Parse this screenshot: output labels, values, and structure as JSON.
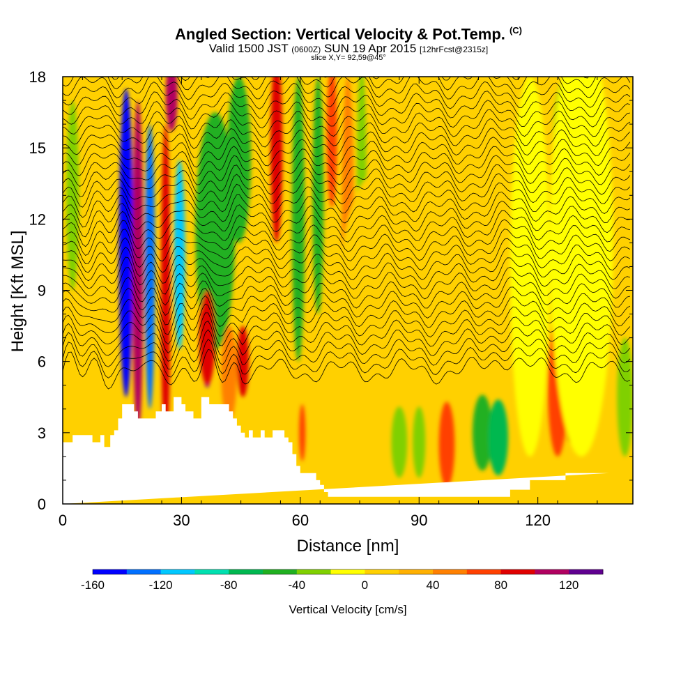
{
  "title": "Angled Section: Vertical Velocity & Pot.Temp.",
  "title_unit": "(C)",
  "subtitle": {
    "valid": "Valid 1500 JST",
    "utc": "(0600Z)",
    "date": "SUN 19 Apr 2015",
    "forecast": "[12hrFcst@2315z]"
  },
  "slice_label": "slice X,Y= 92,59@45°",
  "colors": {
    "palette": [
      "#0000ff",
      "#0070ff",
      "#00c8ff",
      "#00e0b0",
      "#00b850",
      "#20b020",
      "#80d000",
      "#ffff00",
      "#ffd000",
      "#ffb000",
      "#ff8000",
      "#ff4000",
      "#e00000",
      "#b00060",
      "#600090"
    ],
    "terrain": "#ffffff",
    "contour": "#000000"
  },
  "chart_data": {
    "type": "heatmap",
    "xlabel": "Distance [nm]",
    "ylabel": "Height [Kft MSL]",
    "xlim": [
      0,
      144
    ],
    "ylim": [
      0,
      18
    ],
    "x_ticks": [
      0,
      30,
      60,
      90,
      120
    ],
    "y_ticks": [
      0,
      3,
      6,
      9,
      12,
      15,
      18
    ],
    "x_tick_labels": [
      "0",
      "30",
      "60",
      "90",
      "120"
    ],
    "y_tick_labels": [
      "0",
      "3",
      "6",
      "9",
      "12",
      "15",
      "18"
    ],
    "colorbar": {
      "title": "Vertical Velocity [cm/s]",
      "levels": [
        -160,
        -140,
        -120,
        -100,
        -80,
        -60,
        -40,
        -20,
        0,
        20,
        40,
        60,
        80,
        100,
        120,
        140
      ],
      "labels": [
        "-160",
        "-120",
        "-80",
        "-40",
        "0",
        "40",
        "80",
        "120"
      ]
    },
    "terrain_profile": {
      "x": [
        0,
        2.5,
        2.5,
        7.5,
        7.5,
        9.5,
        9.5,
        10.5,
        10.5,
        12,
        12,
        13,
        13,
        14,
        14,
        15,
        15,
        18,
        18,
        19,
        19,
        20,
        20,
        23.5,
        23.5,
        25,
        25,
        26,
        26,
        28,
        28,
        30,
        30,
        31,
        31,
        33,
        33,
        35,
        35,
        37,
        37,
        42,
        42,
        43,
        43,
        44,
        44,
        45,
        45,
        46,
        46,
        47,
        47,
        48,
        48,
        50,
        50,
        51,
        51,
        53,
        53,
        56,
        56,
        57,
        57,
        58,
        58,
        59,
        59,
        60,
        60,
        64,
        64,
        65,
        65,
        66,
        66,
        67,
        67,
        68,
        68,
        113,
        113,
        118,
        118,
        127,
        127,
        138,
        138,
        144
      ],
      "y": [
        2.6,
        2.6,
        2.9,
        2.9,
        2.6,
        2.6,
        2.9,
        2.9,
        2.4,
        2.4,
        2.9,
        2.9,
        3.1,
        3.1,
        3.6,
        3.6,
        4.2,
        4.2,
        3.9,
        3.9,
        3.6,
        3.6,
        3.6,
        3.6,
        3.9,
        3.9,
        4.2,
        4.2,
        3.9,
        3.9,
        4.5,
        4.5,
        4.2,
        4.2,
        3.9,
        3.9,
        3.6,
        3.6,
        4.5,
        4.5,
        4.2,
        4.2,
        3.9,
        3.9,
        3.6,
        3.6,
        3.3,
        3.3,
        3.0,
        3.0,
        2.8,
        2.8,
        3.1,
        3.1,
        2.8,
        2.8,
        3.1,
        3.1,
        2.8,
        2.8,
        3.1,
        3.1,
        2.8,
        2.8,
        2.6,
        2.6,
        2.1,
        2.1,
        1.6,
        1.6,
        1.3,
        1.3,
        1.0,
        1.0,
        0.8,
        0.8,
        0.5,
        0.5,
        0.3,
        0.3,
        0.3,
        0.3,
        0.6,
        0.6,
        1.0,
        1.0,
        1.3,
        1.3,
        1.3
      ]
    },
    "velocity_features": [
      {
        "x": 16.0,
        "y": 11,
        "w": 1.8,
        "h": 6.5,
        "v": -150
      },
      {
        "x": 22.0,
        "y": 10,
        "w": 1.3,
        "h": 6.0,
        "v": -130
      },
      {
        "x": 29.5,
        "y": 10.5,
        "w": 1.4,
        "h": 4.0,
        "v": -110
      },
      {
        "x": 38.5,
        "y": 11.5,
        "w": 5.0,
        "h": 5.0,
        "v": -60
      },
      {
        "x": 44.5,
        "y": 14.5,
        "w": 3.0,
        "h": 3.5,
        "v": -50
      },
      {
        "x": 59.5,
        "y": 12,
        "w": 1.6,
        "h": 6.0,
        "v": -50
      },
      {
        "x": 64.5,
        "y": 13,
        "w": 1.4,
        "h": 5.0,
        "v": -60
      },
      {
        "x": 75.5,
        "y": 14,
        "w": 1.2,
        "h": 4.5,
        "v": -35
      },
      {
        "x": 106,
        "y": 3,
        "w": 2.5,
        "h": 1.6,
        "v": -55
      },
      {
        "x": 110,
        "y": 2.8,
        "w": 2.5,
        "h": 1.6,
        "v": -70
      },
      {
        "x": 85,
        "y": 2.6,
        "w": 2.0,
        "h": 1.5,
        "v": -40
      },
      {
        "x": 90,
        "y": 2.6,
        "w": 1.6,
        "h": 1.5,
        "v": -35
      },
      {
        "x": 127,
        "y": 15.5,
        "w": 3.0,
        "h": 2.5,
        "v": -30
      },
      {
        "x": 142,
        "y": 4.5,
        "w": 2.0,
        "h": 2.5,
        "v": -30
      },
      {
        "x": 2.5,
        "y": 13,
        "w": 1.6,
        "h": 4.0,
        "v": -30
      },
      {
        "x": 19.0,
        "y": 10,
        "w": 1.4,
        "h": 7.0,
        "v": 100
      },
      {
        "x": 26.0,
        "y": 9,
        "w": 1.2,
        "h": 7.0,
        "v": 80
      },
      {
        "x": 36.5,
        "y": 5.9,
        "w": 1.1,
        "h": 1.0,
        "v": 140
      },
      {
        "x": 36.5,
        "y": 7.0,
        "w": 2.0,
        "h": 2.0,
        "v": 80
      },
      {
        "x": 45.5,
        "y": 6.0,
        "w": 1.5,
        "h": 1.5,
        "v": 80
      },
      {
        "x": 54.0,
        "y": 15.0,
        "w": 1.5,
        "h": 4.0,
        "v": 80
      },
      {
        "x": 27.5,
        "y": 17.2,
        "w": 1.5,
        "h": 1.5,
        "v": 100
      },
      {
        "x": 128.0,
        "y": 4.2,
        "w": 1.3,
        "h": 1.6,
        "v": 80
      },
      {
        "x": 60.5,
        "y": 3.0,
        "w": 0.8,
        "h": 1.2,
        "v": 70
      },
      {
        "x": 68.0,
        "y": 15.5,
        "w": 1.3,
        "h": 3.0,
        "v": 60
      },
      {
        "x": 72.0,
        "y": 12.0,
        "w": 1.5,
        "h": 6.0,
        "v": 40
      },
      {
        "x": 97,
        "y": 2.5,
        "w": 2.0,
        "h": 1.8,
        "v": 60
      },
      {
        "x": 125,
        "y": 5.0,
        "w": 2.5,
        "h": 3.0,
        "v": 60
      },
      {
        "x": 42.0,
        "y": 5.5,
        "w": 2.0,
        "h": 2.0,
        "v": 50
      },
      {
        "x": 118,
        "y": 10,
        "w": 5.0,
        "h": 8.0,
        "v": -12
      },
      {
        "x": 131,
        "y": 11,
        "w": 8.0,
        "h": 9.0,
        "v": -12
      },
      {
        "x": 98,
        "y": 14,
        "w": 12.0,
        "h": 6.0,
        "v": 12
      },
      {
        "x": 80,
        "y": 9,
        "w": 10.0,
        "h": 5.0,
        "v": 12
      }
    ],
    "theta_contours": {
      "levels_celsius": [
        16,
        17,
        18,
        19,
        20,
        21,
        22,
        23,
        24,
        25,
        26,
        27,
        28,
        29,
        30,
        31,
        32,
        33,
        34,
        35,
        36,
        37,
        38,
        39,
        40,
        41,
        42,
        43,
        44,
        45,
        46,
        47,
        48
      ],
      "base_height_kft": 5.6,
      "spacing_kft": 0.4
    }
  }
}
